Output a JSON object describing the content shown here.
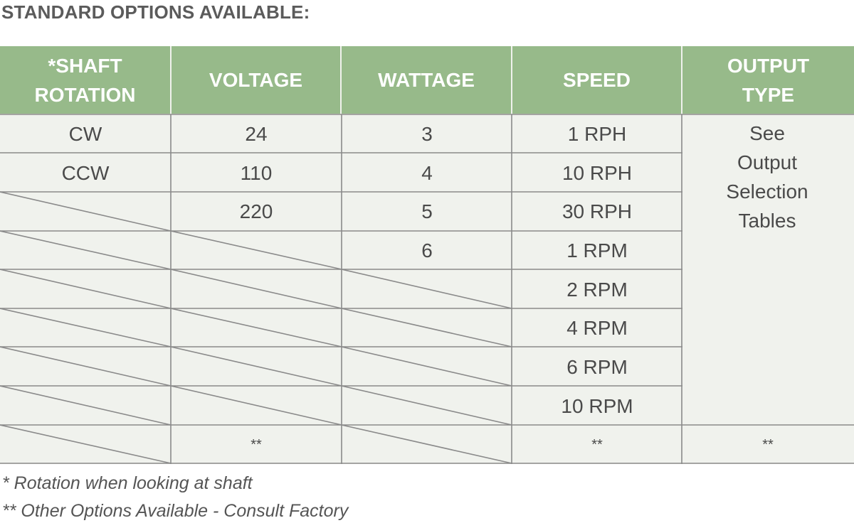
{
  "title": "STANDARD OPTIONS AVAILABLE:",
  "headers": [
    "*SHAFT\nROTATION",
    "VOLTAGE",
    "WATTAGE",
    "SPEED",
    "OUTPUT\nTYPE"
  ],
  "columns": {
    "shaft_rotation": [
      "CW",
      "CCW"
    ],
    "voltage": [
      "24",
      "110",
      "220",
      "**"
    ],
    "wattage": [
      "3",
      "4",
      "5",
      "6"
    ],
    "speed": [
      "1 RPH",
      "10 RPH",
      "30 RPH",
      "1 RPM",
      "2 RPM",
      "4 RPM",
      "6 RPM",
      "10 RPM",
      "**"
    ],
    "output_type": "See\nOutput\nSelection\nTables",
    "output_type_footer": "**"
  },
  "footnotes": [
    "* Rotation when looking at shaft",
    "** Other Options Available - Consult Factory"
  ],
  "colors": {
    "header_bg": "#97ba8a",
    "body_bg": "#f0f2ed",
    "grid": "#8a8a8a"
  }
}
